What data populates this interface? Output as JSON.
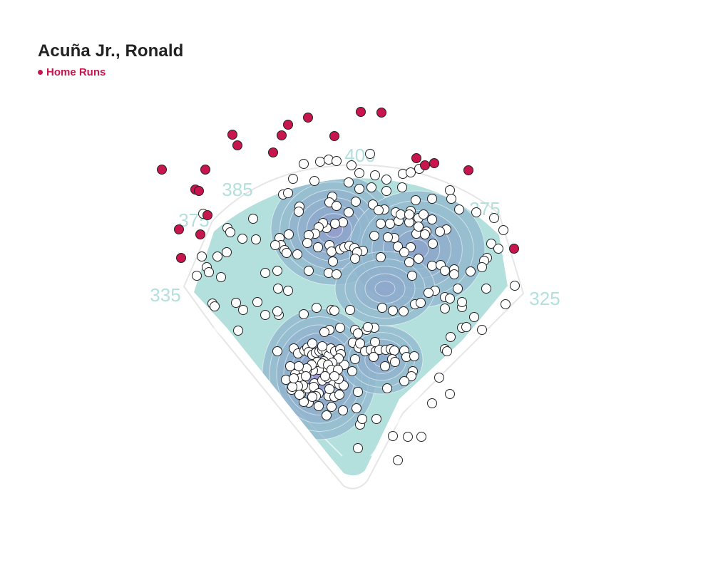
{
  "page": {
    "title": "Acuña Jr., Ronald",
    "legend_label": "Home Runs"
  },
  "colors": {
    "home_run": "#c8154d",
    "other_batted_ball": "#ffffff",
    "outline": "#222222",
    "field_turf": "#b3dfdc",
    "distance_label": "#b3dfdc",
    "density_low": "#8fb4cc",
    "density_mid": "#8a94c8",
    "density_high": "#a77fd0",
    "contour_line": "#ffffff"
  },
  "chart_data": {
    "type": "scatter",
    "subtype": "spray chart with density contours over a baseball field",
    "title": "Acuña Jr., Ronald",
    "legend": [
      {
        "name": "Home Runs",
        "color": "#c8154d"
      }
    ],
    "wall_distances": [
      "335",
      "375",
      "385",
      "400",
      "375",
      "325"
    ],
    "home_runs": [
      [
        227,
        238
      ],
      [
        288,
        238
      ],
      [
        326,
        189
      ],
      [
        333,
        204
      ],
      [
        395,
        190
      ],
      [
        404,
        175
      ],
      [
        432,
        165
      ],
      [
        469,
        191
      ],
      [
        506,
        157
      ],
      [
        535,
        158
      ],
      [
        383,
        214
      ],
      [
        274,
        266
      ],
      [
        279,
        268
      ],
      [
        291,
        302
      ],
      [
        251,
        322
      ],
      [
        281,
        329
      ],
      [
        254,
        362
      ],
      [
        584,
        222
      ],
      [
        596,
        232
      ],
      [
        609,
        229
      ],
      [
        657,
        239
      ],
      [
        721,
        349
      ]
    ],
    "batted_balls": [
      [
        426,
        230
      ],
      [
        449,
        227
      ],
      [
        461,
        224
      ],
      [
        472,
        226
      ],
      [
        519,
        216
      ],
      [
        493,
        232
      ],
      [
        504,
        243
      ],
      [
        526,
        246
      ],
      [
        542,
        252
      ],
      [
        565,
        244
      ],
      [
        576,
        242
      ],
      [
        588,
        237
      ],
      [
        411,
        251
      ],
      [
        441,
        254
      ],
      [
        489,
        256
      ],
      [
        504,
        265
      ],
      [
        521,
        263
      ],
      [
        542,
        268
      ],
      [
        564,
        263
      ],
      [
        583,
        281
      ],
      [
        631,
        267
      ],
      [
        633,
        279
      ],
      [
        606,
        279
      ],
      [
        644,
        294
      ],
      [
        668,
        298
      ],
      [
        693,
        306
      ],
      [
        706,
        323
      ],
      [
        689,
        342
      ],
      [
        699,
        349
      ],
      [
        683,
        362
      ],
      [
        679,
        366
      ],
      [
        676,
        375
      ],
      [
        682,
        405
      ],
      [
        709,
        427
      ],
      [
        722,
        401
      ],
      [
        665,
        445
      ],
      [
        676,
        463
      ],
      [
        648,
        460
      ],
      [
        654,
        459
      ],
      [
        632,
        473
      ],
      [
        624,
        490
      ],
      [
        627,
        493
      ],
      [
        616,
        530
      ],
      [
        631,
        553
      ],
      [
        606,
        566
      ],
      [
        591,
        613
      ],
      [
        572,
        613
      ],
      [
        551,
        612
      ],
      [
        558,
        646
      ],
      [
        502,
        629
      ],
      [
        505,
        596
      ],
      [
        508,
        588
      ],
      [
        528,
        588
      ],
      [
        397,
        273
      ],
      [
        404,
        271
      ],
      [
        420,
        290
      ],
      [
        419,
        297
      ],
      [
        466,
        276
      ],
      [
        462,
        284
      ],
      [
        472,
        289
      ],
      [
        489,
        298
      ],
      [
        481,
        312
      ],
      [
        470,
        314
      ],
      [
        458,
        320
      ],
      [
        453,
        313
      ],
      [
        447,
        319
      ],
      [
        442,
        328
      ],
      [
        433,
        330
      ],
      [
        431,
        341
      ],
      [
        446,
        347
      ],
      [
        462,
        344
      ],
      [
        465,
        353
      ],
      [
        477,
        350
      ],
      [
        483,
        347
      ],
      [
        490,
        345
      ],
      [
        497,
        348
      ],
      [
        509,
        352
      ],
      [
        501,
        354
      ],
      [
        498,
        363
      ],
      [
        467,
        367
      ],
      [
        461,
        383
      ],
      [
        472,
        385
      ],
      [
        433,
        380
      ],
      [
        405,
        329
      ],
      [
        392,
        334
      ],
      [
        394,
        344
      ],
      [
        399,
        351
      ],
      [
        402,
        355
      ],
      [
        417,
        357
      ],
      [
        386,
        344
      ],
      [
        355,
        307
      ],
      [
        359,
        336
      ],
      [
        340,
        335
      ],
      [
        319,
        320
      ],
      [
        323,
        326
      ],
      [
        285,
        300
      ],
      [
        305,
        360
      ],
      [
        318,
        354
      ],
      [
        283,
        360
      ],
      [
        290,
        375
      ],
      [
        293,
        382
      ],
      [
        276,
        387
      ],
      [
        310,
        389
      ],
      [
        390,
        405
      ],
      [
        404,
        408
      ],
      [
        389,
        380
      ],
      [
        372,
        383
      ],
      [
        331,
        425
      ],
      [
        341,
        435
      ],
      [
        361,
        424
      ],
      [
        372,
        442
      ],
      [
        391,
        442
      ],
      [
        389,
        437
      ],
      [
        298,
        426
      ],
      [
        301,
        430
      ],
      [
        334,
        464
      ],
      [
        426,
        441
      ],
      [
        444,
        432
      ],
      [
        465,
        435
      ],
      [
        469,
        436
      ],
      [
        491,
        435
      ],
      [
        525,
        460
      ],
      [
        514,
        463
      ],
      [
        498,
        463
      ],
      [
        502,
        468
      ],
      [
        536,
        432
      ],
      [
        551,
        436
      ],
      [
        566,
        437
      ],
      [
        582,
        427
      ],
      [
        590,
        425
      ],
      [
        610,
        408
      ],
      [
        601,
        411
      ],
      [
        624,
        417
      ],
      [
        631,
        419
      ],
      [
        648,
        431
      ],
      [
        624,
        433
      ],
      [
        648,
        424
      ],
      [
        578,
        387
      ],
      [
        574,
        368
      ],
      [
        587,
        363
      ],
      [
        606,
        373
      ],
      [
        618,
        372
      ],
      [
        624,
        380
      ],
      [
        637,
        378
      ],
      [
        637,
        385
      ],
      [
        660,
        381
      ],
      [
        642,
        405
      ],
      [
        534,
        361
      ],
      [
        558,
        346
      ],
      [
        576,
        347
      ],
      [
        553,
        334
      ],
      [
        544,
        333
      ],
      [
        525,
        331
      ],
      [
        534,
        314
      ],
      [
        547,
        314
      ],
      [
        559,
        310
      ],
      [
        574,
        312
      ],
      [
        587,
        306
      ],
      [
        594,
        301
      ],
      [
        606,
        308
      ],
      [
        598,
        325
      ],
      [
        584,
        328
      ],
      [
        596,
        329
      ],
      [
        607,
        342
      ],
      [
        626,
        322
      ],
      [
        555,
        298
      ],
      [
        576,
        296
      ],
      [
        523,
        287
      ],
      [
        539,
        294
      ],
      [
        531,
        295
      ],
      [
        499,
        283
      ],
      [
        389,
        493
      ],
      [
        412,
        489
      ],
      [
        418,
        496
      ],
      [
        427,
        492
      ],
      [
        431,
        488
      ],
      [
        433,
        494
      ],
      [
        438,
        498
      ],
      [
        443,
        495
      ],
      [
        448,
        493
      ],
      [
        452,
        491
      ],
      [
        458,
        494
      ],
      [
        461,
        499
      ],
      [
        464,
        489
      ],
      [
        470,
        493
      ],
      [
        477,
        490
      ],
      [
        478,
        497
      ],
      [
        495,
        481
      ],
      [
        503,
        488
      ],
      [
        512,
        493
      ],
      [
        520,
        491
      ],
      [
        527,
        493
      ],
      [
        532,
        491
      ],
      [
        541,
        491
      ],
      [
        548,
        490
      ],
      [
        553,
        492
      ],
      [
        567,
        492
      ],
      [
        570,
        501
      ],
      [
        581,
        500
      ],
      [
        579,
        521
      ],
      [
        577,
        528
      ],
      [
        567,
        535
      ],
      [
        543,
        545
      ],
      [
        540,
        514
      ],
      [
        524,
        501
      ],
      [
        550,
        504
      ],
      [
        554,
        508
      ],
      [
        494,
        521
      ],
      [
        498,
        504
      ],
      [
        502,
        550
      ],
      [
        500,
        573
      ],
      [
        481,
        576
      ],
      [
        465,
        571
      ],
      [
        458,
        583
      ],
      [
        447,
        570
      ],
      [
        433,
        565
      ],
      [
        426,
        564
      ],
      [
        422,
        553
      ],
      [
        431,
        545
      ],
      [
        441,
        538
      ],
      [
        452,
        534
      ],
      [
        468,
        537
      ],
      [
        476,
        540
      ],
      [
        482,
        541
      ],
      [
        475,
        532
      ],
      [
        469,
        523
      ],
      [
        459,
        520
      ],
      [
        447,
        519
      ],
      [
        439,
        520
      ],
      [
        430,
        521
      ],
      [
        419,
        521
      ],
      [
        414,
        525
      ],
      [
        421,
        531
      ],
      [
        425,
        541
      ],
      [
        440,
        543
      ],
      [
        461,
        556
      ],
      [
        469,
        557
      ],
      [
        476,
        554
      ],
      [
        483,
        512
      ],
      [
        475,
        503
      ],
      [
        466,
        509
      ],
      [
        454,
        507
      ],
      [
        445,
        508
      ],
      [
        437,
        512
      ],
      [
        430,
        517
      ],
      [
        419,
        514
      ],
      [
        407,
        514
      ],
      [
        401,
        533
      ],
      [
        409,
        547
      ],
      [
        418,
        542
      ],
      [
        429,
        528
      ],
      [
        459,
        530
      ],
      [
        462,
        546
      ],
      [
        447,
        552
      ],
      [
        443,
        556
      ],
      [
        438,
        557
      ],
      [
        420,
        554
      ],
      [
        410,
        543
      ],
      [
        412,
        531
      ],
      [
        452,
        510
      ],
      [
        460,
        512
      ],
      [
        465,
        519
      ],
      [
        456,
        528
      ],
      [
        474,
        519
      ],
      [
        469,
        528
      ],
      [
        438,
        482
      ],
      [
        452,
        486
      ],
      [
        516,
        459
      ],
      [
        526,
        480
      ],
      [
        505,
        482
      ],
      [
        462,
        463
      ],
      [
        477,
        460
      ],
      [
        455,
        466
      ],
      [
        562,
        301
      ],
      [
        574,
        301
      ],
      [
        567,
        354
      ],
      [
        587,
        318
      ],
      [
        617,
        325
      ]
    ]
  }
}
